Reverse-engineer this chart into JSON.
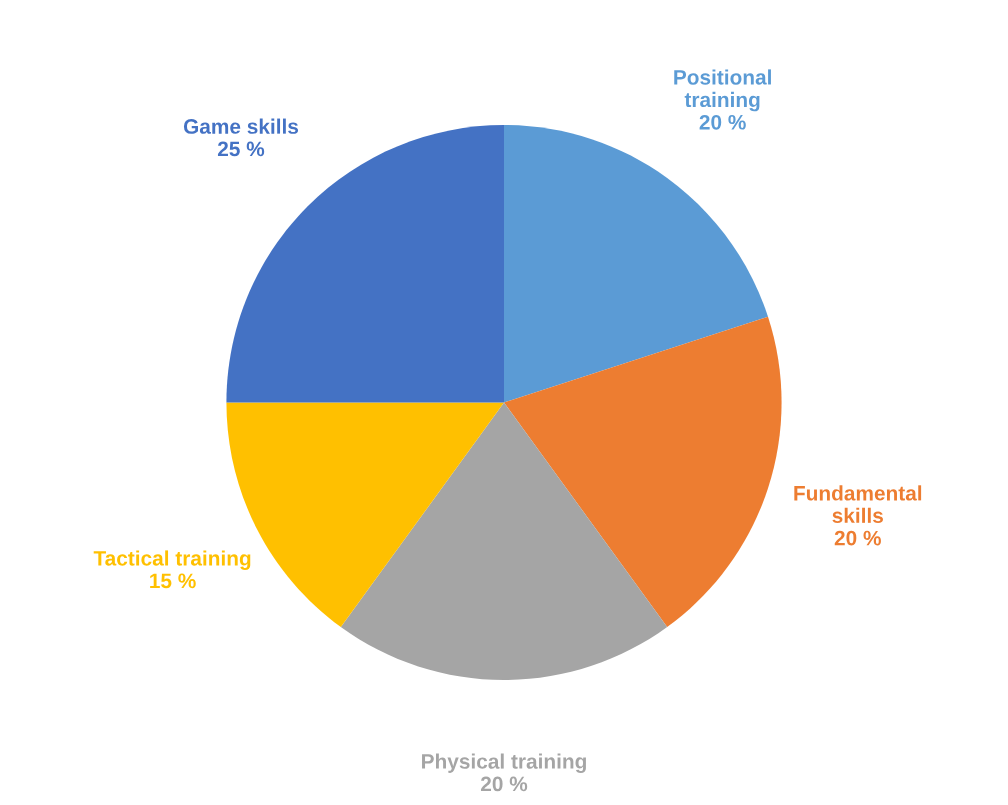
{
  "chart_data": {
    "type": "pie",
    "categories": [
      "Positional\ntraining",
      "Fundamental\nskills",
      "Physical training",
      "Tactical training",
      "Game skills"
    ],
    "values": [
      20,
      20,
      20,
      15,
      25
    ],
    "value_labels": [
      "20 %",
      "20 %",
      "20 %",
      "15 %",
      "25 %"
    ],
    "colors": [
      "#5b9bd5",
      "#ed7d31",
      "#a5a5a5",
      "#ffc000",
      "#4472c4"
    ],
    "legend": false
  }
}
